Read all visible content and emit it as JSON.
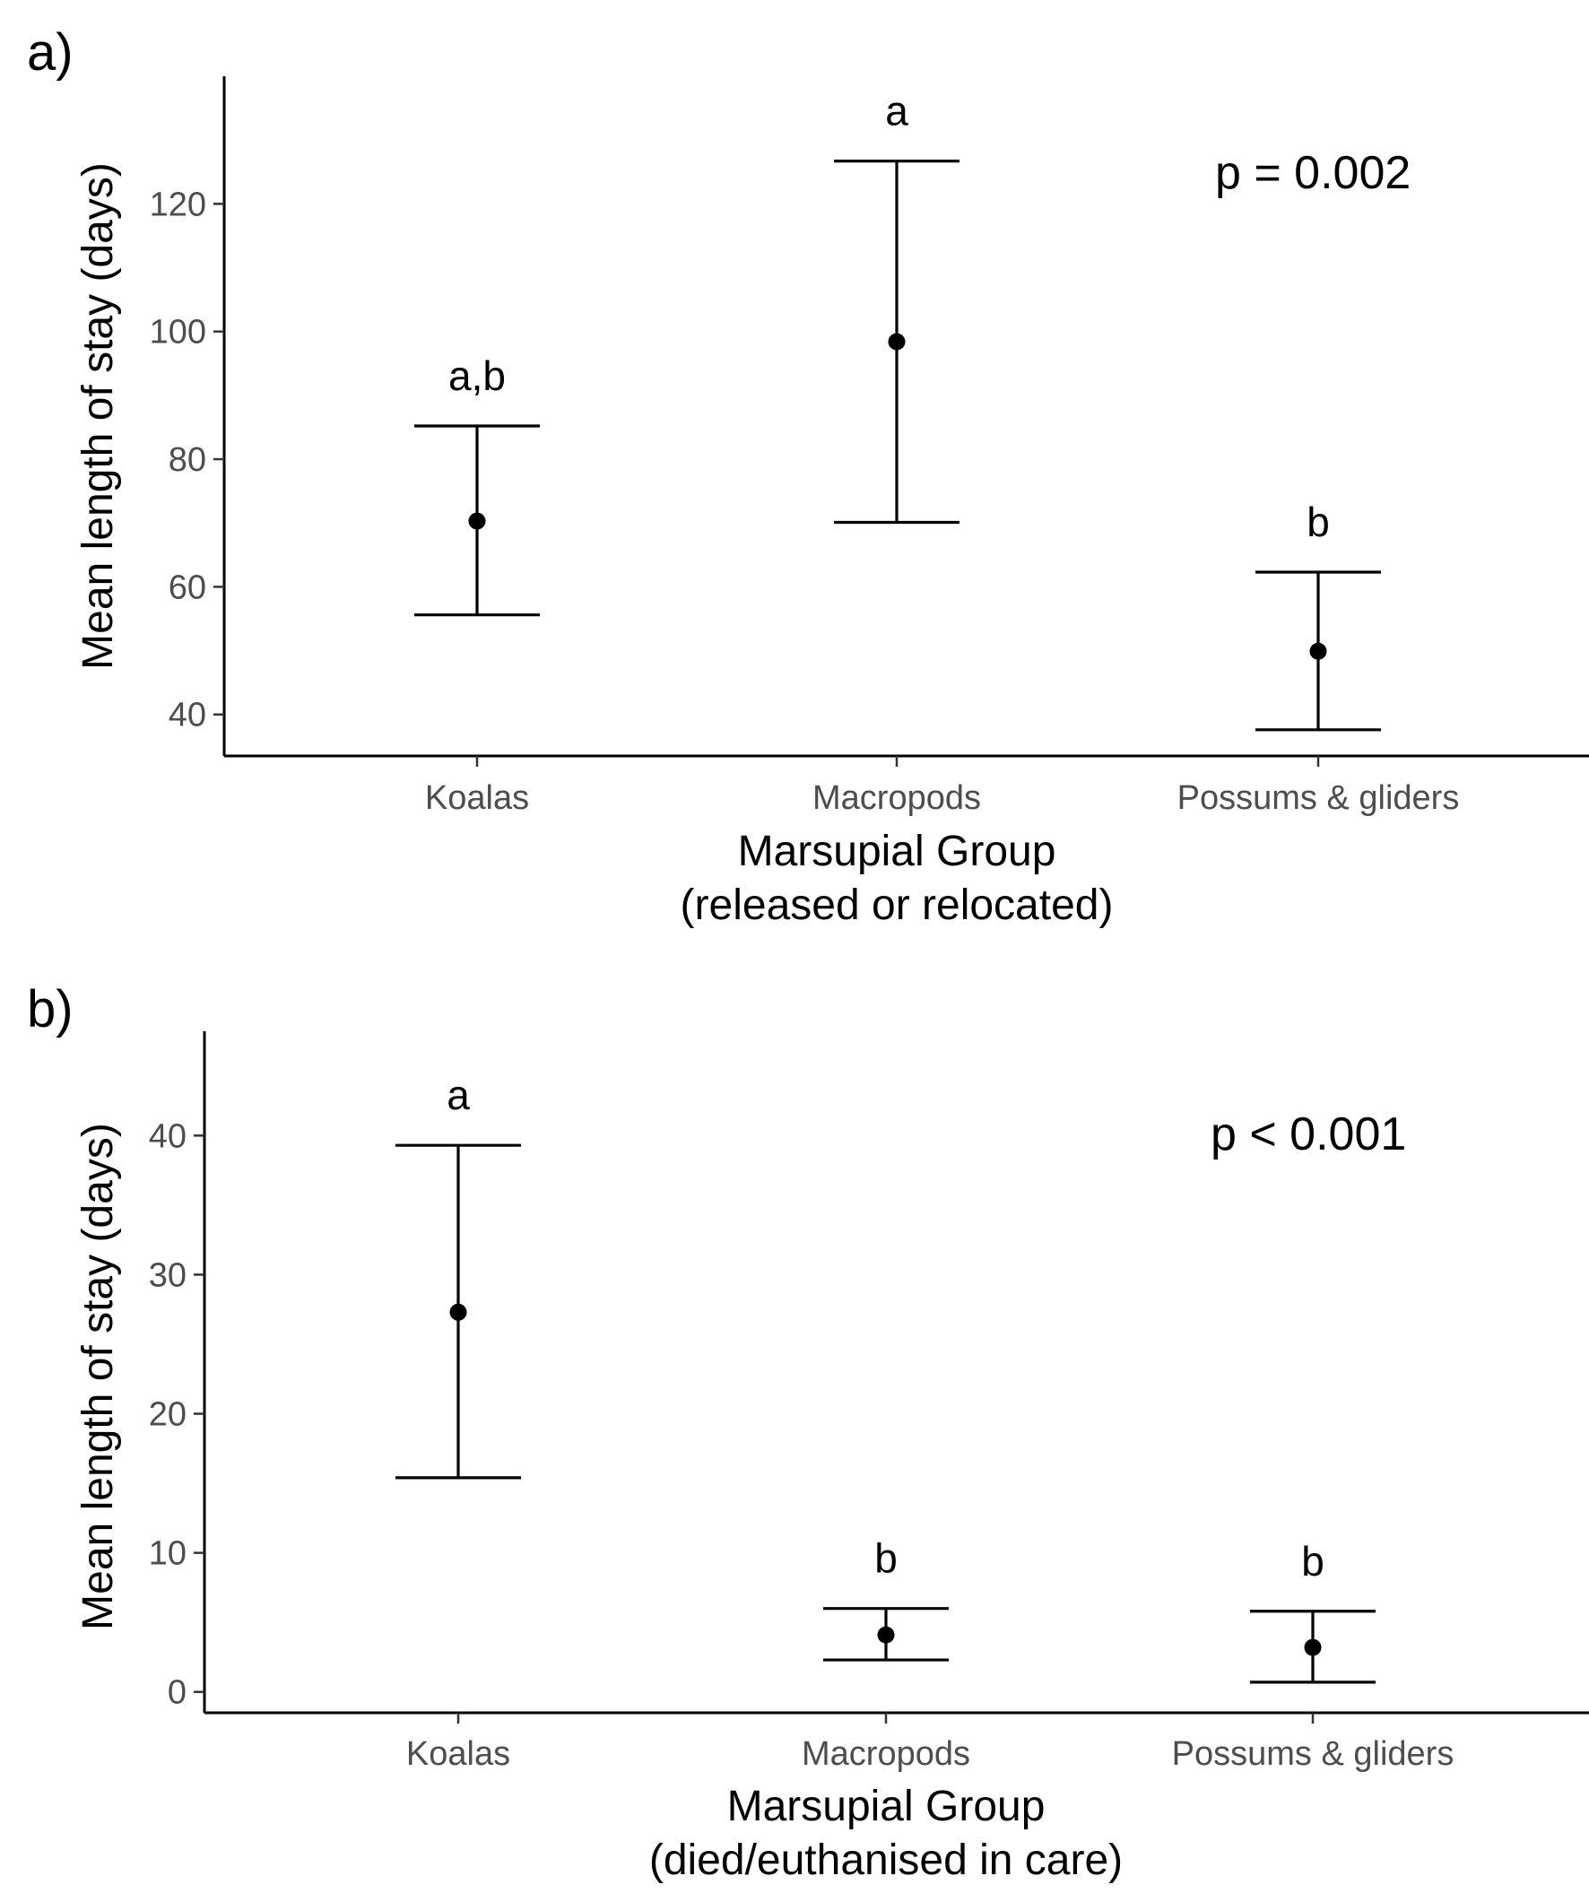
{
  "chart_data": [
    {
      "type": "errorbar",
      "panel_label": "a)",
      "categories": [
        "Koalas",
        "Macropods",
        "Possums & gliders"
      ],
      "means": [
        70.3,
        98.4,
        49.9
      ],
      "lower": [
        55.6,
        70.1,
        37.6
      ],
      "upper": [
        85.2,
        126.7,
        62.3
      ],
      "significance_letters": [
        "a,b",
        "a",
        "b"
      ],
      "xlabel_line1": "Marsupial Group",
      "xlabel_line2": "(released or relocated)",
      "ylabel": "Mean length of stay (days)",
      "ylim": [
        33.5,
        140
      ],
      "yticks": [
        40,
        60,
        80,
        100,
        120
      ],
      "p_value_text": "p = 0.002",
      "grid": false
    },
    {
      "type": "errorbar",
      "panel_label": "b)",
      "categories": [
        "Koalas",
        "Macropods",
        "Possums & gliders"
      ],
      "means": [
        27.3,
        4.1,
        3.2
      ],
      "lower": [
        15.4,
        2.3,
        0.7
      ],
      "upper": [
        39.3,
        6.0,
        5.8
      ],
      "significance_letters": [
        "a",
        "b",
        "b"
      ],
      "xlabel_line1": "Marsupial Group",
      "xlabel_line2": "(died/euthanised in care)",
      "ylabel": "Mean length of stay (days)",
      "ylim": [
        -1.5,
        47.5
      ],
      "yticks": [
        0,
        10,
        20,
        30,
        40
      ],
      "p_value_text": "p < 0.001",
      "grid": false
    }
  ]
}
